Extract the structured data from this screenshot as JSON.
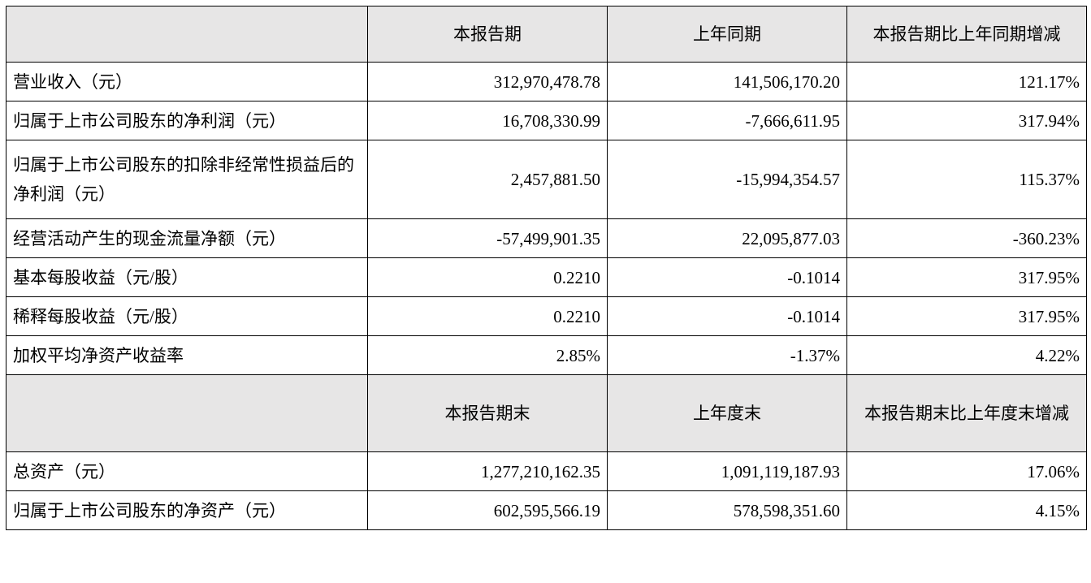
{
  "sections": [
    {
      "header": [
        "本报告期",
        "上年同期",
        "本报告期比上年同期增减"
      ],
      "rows": [
        [
          "营业收入（元）",
          "312,970,478.78",
          "141,506,170.20",
          "121.17%"
        ],
        [
          "归属于上市公司股东的净利润（元）",
          "16,708,330.99",
          "-7,666,611.95",
          "317.94%"
        ],
        [
          "归属于上市公司股东的扣除非经常性损益后的净利润（元）",
          "2,457,881.50",
          "-15,994,354.57",
          "115.37%"
        ],
        [
          "经营活动产生的现金流量净额（元）",
          "-57,499,901.35",
          "22,095,877.03",
          "-360.23%"
        ],
        [
          "基本每股收益（元/股）",
          "0.2210",
          "-0.1014",
          "317.95%"
        ],
        [
          "稀释每股收益（元/股）",
          "0.2210",
          "-0.1014",
          "317.95%"
        ],
        [
          "加权平均净资产收益率",
          "2.85%",
          "-1.37%",
          "4.22%"
        ]
      ]
    },
    {
      "header": [
        "本报告期末",
        "上年度末",
        "本报告期末比上年度末增减"
      ],
      "rows": [
        [
          "总资产（元）",
          "1,277,210,162.35",
          "1,091,119,187.93",
          "17.06%"
        ],
        [
          "归属于上市公司股东的净资产（元）",
          "602,595,566.19",
          "578,598,351.60",
          "4.15%"
        ]
      ]
    }
  ]
}
